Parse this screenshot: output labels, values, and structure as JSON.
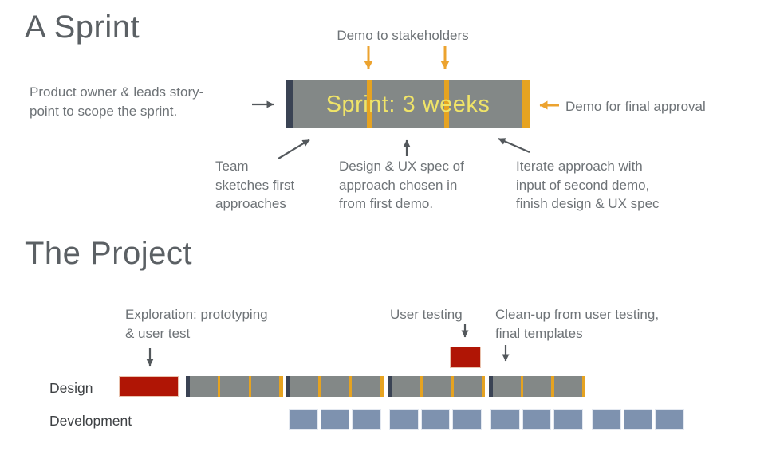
{
  "page": {
    "background": "#ffffff"
  },
  "colors": {
    "bar_gray": "#838887",
    "bar_navy": "#3a4354",
    "accent_orange": "#e6a321",
    "arrow_orange": "#eca32f",
    "label_yellow": "#f0e468",
    "exploration_red": "#b01505",
    "development_blue": "#7e92af",
    "title_gray": "#5b6064",
    "annotation_gray": "#6e7377",
    "arrow_gray": "#53585c"
  },
  "sprint_section": {
    "title": "A Sprint",
    "bar_label": "Sprint: 3 weeks",
    "duration_weeks": 3,
    "annotations": {
      "demo_stakeholders": "Demo to stakeholders",
      "product_owner": "Product owner & leads story-\npoint to scope the sprint.",
      "final_approval": "Demo for final approval",
      "team_sketches": "Team\nsketches first\napproaches",
      "ux_spec": "Design & UX spec of\napproach chosen in\nfrom first demo.",
      "iterate": "Iterate approach with\ninput of second demo,\nfinish design & UX spec"
    }
  },
  "project_section": {
    "title": "The Project",
    "annotations": {
      "exploration": "Exploration: prototyping\n& user test",
      "user_testing": "User testing",
      "cleanup": "Clean-up from user testing,\nfinal templates"
    },
    "design_row": {
      "label": "Design",
      "bars": [
        {
          "kind": "exploration"
        },
        {
          "kind": "sprint",
          "weeks": 3
        },
        {
          "kind": "sprint",
          "weeks": 3
        },
        {
          "kind": "sprint",
          "weeks": 3
        },
        {
          "kind": "sprint",
          "weeks": 3
        }
      ],
      "user_testing_bar": {
        "kind": "exploration"
      }
    },
    "development_row": {
      "label": "Development",
      "groups": [
        3,
        3,
        3,
        3
      ]
    }
  }
}
